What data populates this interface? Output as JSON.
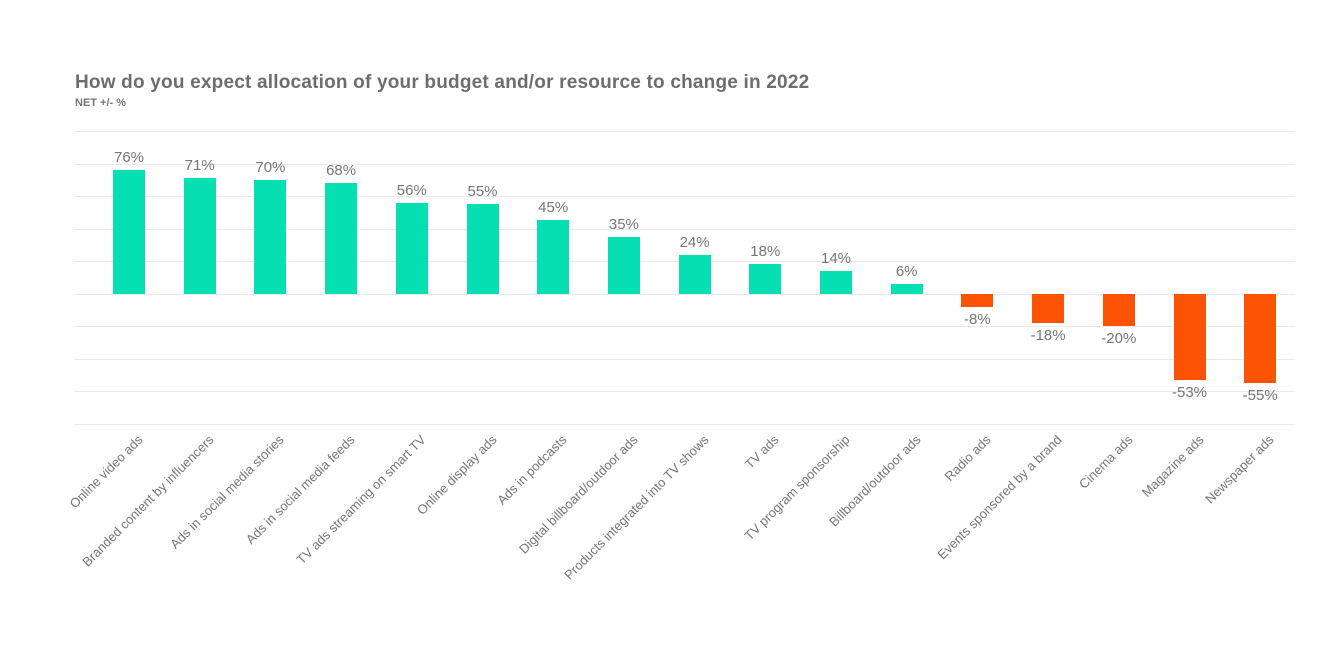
{
  "header": {
    "title": "How do you expect allocation of your budget and/or resource to change in 2022",
    "subtitle": "NET +/- %"
  },
  "chart_data": {
    "type": "bar",
    "title": "How do you expect allocation of your budget and/or resource to change in 2022",
    "subtitle": "NET +/- %",
    "categories": [
      "Online video ads",
      "Branded content by influencers",
      "Ads in social media stories",
      "Ads in social media feeds",
      "TV ads streaming on smart TV",
      "Online display ads",
      "Ads in podcasts",
      "Digital billboard/outdoor ads",
      "Products integrated into TV shows",
      "TV ads",
      "TV program sponsorship",
      "Billboard/outdoor ads",
      "Radio ads",
      "Events sponsored by a brand",
      "Cinema ads",
      "Magazine ads",
      "Newspaper ads"
    ],
    "values": [
      76,
      71,
      70,
      68,
      56,
      55,
      45,
      35,
      24,
      18,
      14,
      6,
      -8,
      -18,
      -20,
      -53,
      -55
    ],
    "value_labels": [
      "76%",
      "71%",
      "70%",
      "68%",
      "56%",
      "55%",
      "45%",
      "35%",
      "24%",
      "18%",
      "14%",
      "6%",
      "-8%",
      "-18%",
      "-20%",
      "-53%",
      "-55%"
    ],
    "xlabel": "",
    "ylabel": "",
    "ylim": [
      -80,
      100
    ],
    "gridline_step": 20,
    "grid": true,
    "legend": "none",
    "positive_color": "#06dfb1",
    "negative_color": "#fb5301",
    "gridline_color": "#e9e9e9",
    "label_color": "#757575"
  }
}
